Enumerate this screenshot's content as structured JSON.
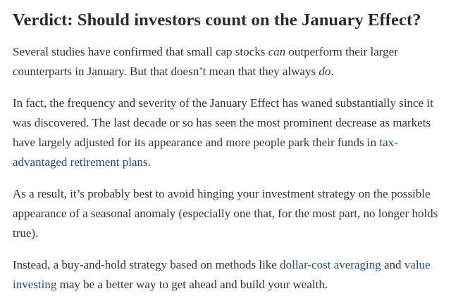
{
  "heading": "Verdict: Should investors count on the January Effect?",
  "paragraphs": [
    [
      "Several studies have confirmed that small cap stocks ",
      "can",
      " outperform their larger counterparts in January. But that doesn’t mean that they always ",
      "do",
      "."
    ],
    [
      "In fact, the frequency and severity of the January Effect has waned substantially since it was discovered. The last decade or so has seen the most prominent decrease as markets have largely adjusted for its appearance and more people park their funds in ",
      "tax-advantaged retirement plans",
      "."
    ],
    [
      "As a result, it’s probably best to avoid hinging your investment strategy on the possible appearance of a seasonal anomaly (especially one that, for the most part, no longer holds true)."
    ],
    [
      "Instead, a buy-and-hold strategy based on methods like ",
      "dollar-cost averaging",
      " and ",
      "value investing",
      " may be a better way to get ahead and build your wealth."
    ]
  ]
}
